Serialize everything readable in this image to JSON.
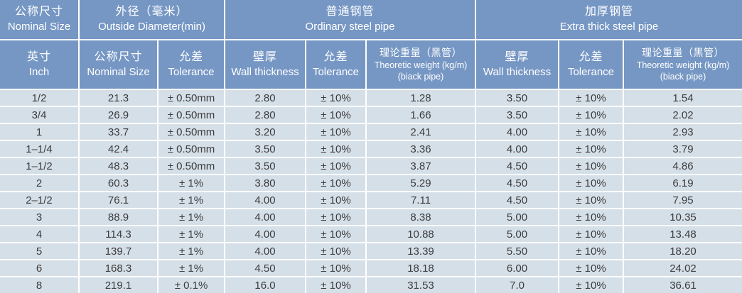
{
  "table": {
    "header_groups": [
      {
        "zh": "公称尺寸",
        "en": "Nominal Size"
      },
      {
        "zh": "外径（毫米）",
        "en": "Outside Diameter(min)"
      },
      {
        "zh": "普通钢管",
        "en": "Ordinary steel pipe"
      },
      {
        "zh": "加厚钢管",
        "en": "Extra thick steel pipe"
      }
    ],
    "columns": [
      {
        "zh": "英寸",
        "en": "Inch"
      },
      {
        "zh": "公称尺寸",
        "en": "Nominal Size"
      },
      {
        "zh": "允差",
        "en": "Tolerance"
      },
      {
        "zh": "壁厚",
        "en": "Wall thickness"
      },
      {
        "zh": "允差",
        "en": "Tolerance"
      },
      {
        "zh": "理论重量（黑管）",
        "en": "Theoretic weight (kg/m)",
        "en2": "(biack pipe)"
      },
      {
        "zh": "壁厚",
        "en": "Wall thickness"
      },
      {
        "zh": "允差",
        "en": "Tolerance"
      },
      {
        "zh": "理论重量（黑管）",
        "en": "Theoretic weight (kg/m)",
        "en2": "(biack pipe)"
      }
    ],
    "rows": [
      [
        "1/2",
        "21.3",
        "± 0.50mm",
        "2.80",
        "± 10%",
        "1.28",
        "3.50",
        "± 10%",
        "1.54"
      ],
      [
        "3/4",
        "26.9",
        "± 0.50mm",
        "2.80",
        "± 10%",
        "1.66",
        "3.50",
        "± 10%",
        "2.02"
      ],
      [
        "1",
        "33.7",
        "± 0.50mm",
        "3.20",
        "± 10%",
        "2.41",
        "4.00",
        "± 10%",
        "2.93"
      ],
      [
        "1–1/4",
        "42.4",
        "± 0.50mm",
        "3.50",
        "± 10%",
        "3.36",
        "4.00",
        "± 10%",
        "3.79"
      ],
      [
        "1–1/2",
        "48.3",
        "± 0.50mm",
        "3.50",
        "± 10%",
        "3.87",
        "4.50",
        "± 10%",
        "4.86"
      ],
      [
        "2",
        "60.3",
        "± 1%",
        "3.80",
        "± 10%",
        "5.29",
        "4.50",
        "± 10%",
        "6.19"
      ],
      [
        "2–1/2",
        "76.1",
        "± 1%",
        "4.00",
        "± 10%",
        "7.11",
        "4.50",
        "± 10%",
        "7.95"
      ],
      [
        "3",
        "88.9",
        "± 1%",
        "4.00",
        "± 10%",
        "8.38",
        "5.00",
        "± 10%",
        "10.35"
      ],
      [
        "4",
        "114.3",
        "± 1%",
        "4.00",
        "± 10%",
        "10.88",
        "5.00",
        "± 10%",
        "13.48"
      ],
      [
        "5",
        "139.7",
        "± 1%",
        "4.00",
        "± 10%",
        "13.39",
        "5.50",
        "± 10%",
        "18.20"
      ],
      [
        "6",
        "168.3",
        "± 1%",
        "4.50",
        "± 10%",
        "18.18",
        "6.00",
        "± 10%",
        "24.02"
      ],
      [
        "8",
        "219.1",
        "± 0.1%",
        "16.0",
        "± 10%",
        "31.53",
        "7.0",
        "± 10%",
        "36.61"
      ]
    ]
  },
  "colors": {
    "header_bg": "#7697c4",
    "row_bg": "#d5dfe8",
    "separator": "#ffffff",
    "header_text": "#ffffff",
    "data_text": "#3c3c3c"
  }
}
